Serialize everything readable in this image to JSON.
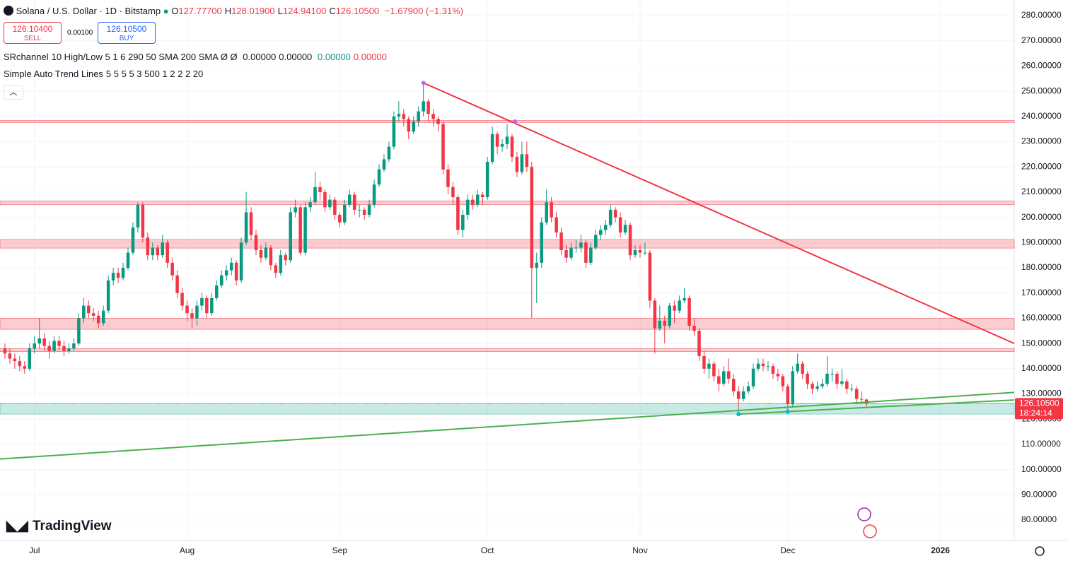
{
  "header": {
    "title": "Solana / U.S. Dollar · 1D · Bitstamp",
    "ohlc_legend": [
      {
        "key": "O",
        "value": "127.77700"
      },
      {
        "key": "H",
        "value": "128.01900"
      },
      {
        "key": "L",
        "value": "124.94100"
      },
      {
        "key": "C",
        "value": "126.10500"
      }
    ],
    "change": "−1.67900 (−1.31%)",
    "sell": {
      "price": "126.10400",
      "label": "SELL"
    },
    "spread": "0.00100",
    "buy": {
      "price": "126.10500",
      "label": "BUY"
    },
    "indicators": [
      {
        "name": "SRchannel",
        "params": "10 High/Low 5 1 6 290 50 SMA 200 SMA Ø Ø",
        "values": [
          "0.00000",
          "0.00000",
          "0.00000",
          "0.00000"
        ]
      },
      {
        "name": "Simple Auto Trend Lines",
        "params": "5 5 5 5 3 500 1 2 2 2 20",
        "values": []
      }
    ],
    "brand": "TradingView"
  },
  "chart_data": {
    "type": "candlestick",
    "up_color": "#089981",
    "down_color": "#f23645",
    "xlim": [
      -1,
      205
    ],
    "ylim": [
      71.88,
      286.16
    ],
    "grid": true,
    "xticks": [
      {
        "value": 6,
        "label": "Jul"
      },
      {
        "value": 37,
        "label": "Aug"
      },
      {
        "value": 68,
        "label": "Sep"
      },
      {
        "value": 98,
        "label": "Oct"
      },
      {
        "value": 129,
        "label": "Nov"
      },
      {
        "value": 159,
        "label": "Dec"
      },
      {
        "value": 190,
        "label": "2026"
      }
    ],
    "yticks": [
      {
        "value": 80,
        "label": "80.00000"
      },
      {
        "value": 90,
        "label": "90.00000"
      },
      {
        "value": 100,
        "label": "100.00000"
      },
      {
        "value": 110,
        "label": "110.00000"
      },
      {
        "value": 120,
        "label": "120.00000"
      },
      {
        "value": 130,
        "label": "130.00000"
      },
      {
        "value": 140,
        "label": "140.00000"
      },
      {
        "value": 150,
        "label": "150.00000"
      },
      {
        "value": 160,
        "label": "160.00000"
      },
      {
        "value": 170,
        "label": "170.00000"
      },
      {
        "value": 180,
        "label": "180.00000"
      },
      {
        "value": 190,
        "label": "190.00000"
      },
      {
        "value": 200,
        "label": "200.00000"
      },
      {
        "value": 210,
        "label": "210.00000"
      },
      {
        "value": 220,
        "label": "220.00000"
      },
      {
        "value": 230,
        "label": "230.00000"
      },
      {
        "value": 240,
        "label": "240.00000"
      },
      {
        "value": 250,
        "label": "250.00000"
      },
      {
        "value": 260,
        "label": "260.00000"
      },
      {
        "value": 270,
        "label": "270.00000"
      },
      {
        "value": 280,
        "label": "280.00000"
      }
    ],
    "ohlc": [
      [
        148,
        150,
        144,
        146
      ],
      [
        146,
        148,
        142,
        144
      ],
      [
        144,
        146,
        140,
        143
      ],
      [
        143,
        145,
        139,
        141
      ],
      [
        141,
        143,
        138,
        140
      ],
      [
        140,
        150,
        139,
        148
      ],
      [
        148,
        153,
        146,
        150
      ],
      [
        150,
        160,
        148,
        152
      ],
      [
        152,
        154,
        147,
        149
      ],
      [
        149,
        151,
        144,
        147
      ],
      [
        147,
        153,
        146,
        151
      ],
      [
        151,
        153,
        147,
        149
      ],
      [
        149,
        151,
        145,
        147
      ],
      [
        147,
        150,
        146,
        148
      ],
      [
        148,
        152,
        147,
        150
      ],
      [
        150,
        162,
        149,
        160
      ],
      [
        160,
        168,
        158,
        165
      ],
      [
        165,
        167,
        160,
        162
      ],
      [
        162,
        164,
        159,
        161
      ],
      [
        161,
        163,
        156,
        158
      ],
      [
        158,
        165,
        157,
        163
      ],
      [
        163,
        177,
        162,
        175
      ],
      [
        175,
        180,
        173,
        178
      ],
      [
        178,
        180,
        174,
        176
      ],
      [
        176,
        182,
        175,
        180
      ],
      [
        180,
        188,
        179,
        186
      ],
      [
        186,
        198,
        185,
        196
      ],
      [
        196,
        206,
        194,
        205
      ],
      [
        205,
        206,
        190,
        192
      ],
      [
        192,
        194,
        183,
        185
      ],
      [
        185,
        190,
        183,
        188
      ],
      [
        188,
        189,
        183,
        185
      ],
      [
        185,
        193,
        184,
        190
      ],
      [
        190,
        191,
        180,
        182
      ],
      [
        182,
        184,
        175,
        177
      ],
      [
        177,
        179,
        168,
        170
      ],
      [
        170,
        172,
        163,
        165
      ],
      [
        165,
        167,
        159,
        162
      ],
      [
        162,
        164,
        156,
        160
      ],
      [
        160,
        167,
        157,
        165
      ],
      [
        165,
        170,
        163,
        168
      ],
      [
        168,
        169,
        160,
        162
      ],
      [
        162,
        170,
        161,
        168
      ],
      [
        168,
        175,
        167,
        173
      ],
      [
        173,
        179,
        172,
        177
      ],
      [
        177,
        181,
        175,
        179
      ],
      [
        179,
        184,
        177,
        182
      ],
      [
        182,
        183,
        173,
        175
      ],
      [
        175,
        192,
        174,
        190
      ],
      [
        190,
        210,
        189,
        202
      ],
      [
        202,
        204,
        191,
        193
      ],
      [
        193,
        195,
        185,
        187
      ],
      [
        187,
        189,
        182,
        184
      ],
      [
        184,
        190,
        183,
        188
      ],
      [
        188,
        189,
        179,
        181
      ],
      [
        181,
        182,
        176,
        178
      ],
      [
        178,
        187,
        177,
        185
      ],
      [
        185,
        186,
        181,
        183
      ],
      [
        183,
        204,
        182,
        202
      ],
      [
        202,
        207,
        200,
        204
      ],
      [
        204,
        205,
        185,
        186
      ],
      [
        186,
        206,
        185,
        204
      ],
      [
        204,
        208,
        202,
        206
      ],
      [
        206,
        218,
        205,
        212
      ],
      [
        212,
        214,
        207,
        210
      ],
      [
        210,
        211,
        202,
        204
      ],
      [
        204,
        209,
        203,
        207
      ],
      [
        207,
        208,
        199,
        201
      ],
      [
        201,
        202,
        196,
        198
      ],
      [
        198,
        207,
        197,
        205
      ],
      [
        205,
        211,
        204,
        209
      ],
      [
        209,
        210,
        201,
        203
      ],
      [
        203,
        205,
        200,
        203
      ],
      [
        203,
        204,
        199,
        201
      ],
      [
        201,
        207,
        200,
        205
      ],
      [
        205,
        215,
        204,
        213
      ],
      [
        213,
        221,
        212,
        219
      ],
      [
        219,
        225,
        218,
        223
      ],
      [
        223,
        230,
        222,
        228
      ],
      [
        228,
        242,
        227,
        240
      ],
      [
        240,
        246,
        238,
        241
      ],
      [
        241,
        243,
        236,
        239
      ],
      [
        239,
        240,
        231,
        234
      ],
      [
        234,
        240,
        233,
        238
      ],
      [
        238,
        244,
        236,
        242
      ],
      [
        242,
        253,
        240,
        246
      ],
      [
        246,
        247,
        238,
        241
      ],
      [
        241,
        243,
        236,
        239
      ],
      [
        239,
        240,
        234,
        237
      ],
      [
        237,
        238,
        217,
        219
      ],
      [
        219,
        221,
        209,
        212
      ],
      [
        212,
        214,
        205,
        208
      ],
      [
        208,
        209,
        193,
        195
      ],
      [
        195,
        203,
        192,
        201
      ],
      [
        201,
        209,
        199,
        207
      ],
      [
        207,
        209,
        203,
        205
      ],
      [
        205,
        211,
        204,
        209
      ],
      [
        209,
        210,
        205,
        208
      ],
      [
        208,
        224,
        207,
        222
      ],
      [
        222,
        236,
        221,
        233
      ],
      [
        233,
        234,
        225,
        228
      ],
      [
        228,
        231,
        226,
        229
      ],
      [
        229,
        237,
        227,
        232
      ],
      [
        232,
        233,
        222,
        224
      ],
      [
        224,
        226,
        216,
        218
      ],
      [
        218,
        230,
        217,
        225
      ],
      [
        225,
        230,
        218,
        220
      ],
      [
        220,
        222,
        160,
        180
      ],
      [
        180,
        186,
        166,
        182
      ],
      [
        182,
        200,
        180,
        198
      ],
      [
        198,
        211,
        197,
        206
      ],
      [
        206,
        208,
        198,
        200
      ],
      [
        200,
        202,
        192,
        194
      ],
      [
        194,
        196,
        185,
        187
      ],
      [
        187,
        189,
        182,
        184
      ],
      [
        184,
        190,
        183,
        188
      ],
      [
        188,
        191,
        186,
        188
      ],
      [
        188,
        193,
        186,
        190
      ],
      [
        190,
        191,
        180,
        182
      ],
      [
        182,
        190,
        181,
        188
      ],
      [
        188,
        195,
        187,
        193
      ],
      [
        193,
        197,
        191,
        195
      ],
      [
        195,
        199,
        193,
        197
      ],
      [
        197,
        205,
        196,
        203
      ],
      [
        203,
        204,
        198,
        200
      ],
      [
        200,
        202,
        192,
        194
      ],
      [
        194,
        199,
        193,
        197
      ],
      [
        197,
        198,
        183,
        185
      ],
      [
        185,
        189,
        184,
        187
      ],
      [
        187,
        189,
        184,
        186
      ],
      [
        186,
        190,
        185,
        186
      ],
      [
        186,
        187,
        164,
        167
      ],
      [
        167,
        168,
        146,
        156
      ],
      [
        156,
        165,
        155,
        159
      ],
      [
        159,
        161,
        150,
        157
      ],
      [
        157,
        166,
        156,
        165
      ],
      [
        165,
        167,
        158,
        163
      ],
      [
        163,
        169,
        162,
        167
      ],
      [
        167,
        172,
        166,
        168
      ],
      [
        168,
        169,
        155,
        157
      ],
      [
        157,
        160,
        153,
        155
      ],
      [
        155,
        156,
        143,
        145
      ],
      [
        145,
        147,
        138,
        140
      ],
      [
        140,
        144,
        136,
        142
      ],
      [
        142,
        143,
        135,
        137
      ],
      [
        137,
        140,
        131,
        134
      ],
      [
        134,
        141,
        133,
        139
      ],
      [
        139,
        144,
        134,
        136
      ],
      [
        136,
        138,
        129,
        131
      ],
      [
        131,
        133,
        122,
        128
      ],
      [
        128,
        133,
        127,
        131
      ],
      [
        131,
        135,
        130,
        133
      ],
      [
        133,
        142,
        132,
        140
      ],
      [
        140,
        144,
        139,
        142
      ],
      [
        142,
        144,
        139,
        141
      ],
      [
        141,
        143,
        139,
        141
      ],
      [
        141,
        142,
        136,
        138
      ],
      [
        138,
        140,
        135,
        137
      ],
      [
        137,
        138,
        131,
        133
      ],
      [
        133,
        134,
        123,
        126
      ],
      [
        126,
        141,
        125,
        139
      ],
      [
        139,
        146,
        138,
        142
      ],
      [
        142,
        143,
        136,
        138
      ],
      [
        138,
        139,
        132,
        134
      ],
      [
        134,
        135,
        130,
        132
      ],
      [
        132,
        135,
        131,
        133
      ],
      [
        133,
        136,
        132,
        134
      ],
      [
        134,
        145,
        133,
        138
      ],
      [
        138,
        140,
        135,
        138
      ],
      [
        138,
        139,
        132,
        134
      ],
      [
        134,
        140,
        133,
        135
      ],
      [
        135,
        136,
        130,
        132
      ],
      [
        132,
        134,
        131,
        132
      ],
      [
        132,
        133,
        126,
        128
      ],
      [
        128,
        131,
        126,
        127.78
      ],
      [
        127.777,
        128.019,
        124.941,
        126.105
      ]
    ],
    "sr_zones": [
      {
        "range": [
          237.6,
          238.4
        ],
        "color": "#f23645"
      },
      {
        "range": [
          205,
          206.5
        ],
        "color": "#f23645"
      },
      {
        "range": [
          187.8,
          191.2
        ],
        "color": "#f23645"
      },
      {
        "range": [
          155.6,
          160
        ],
        "color": "#f23645"
      },
      {
        "range": [
          146.8,
          148
        ],
        "color": "#f23645"
      },
      {
        "range": [
          122,
          126.2
        ],
        "color": "#22ab94"
      }
    ],
    "trend_lines": [
      {
        "color": "#f23645",
        "points": [
          [
            85,
            253.3
          ],
          [
            205,
            150
          ]
        ]
      },
      {
        "color": "#4caf50",
        "points": [
          [
            -1,
            104.2
          ],
          [
            205,
            130.6
          ]
        ]
      },
      {
        "color": "#4caf50",
        "points": [
          [
            149,
            122
          ],
          [
            205,
            127.6
          ]
        ]
      }
    ],
    "pivots": [
      {
        "color": "#b36bf0",
        "points": [
          [
            85,
            253.3
          ],
          [
            103.6,
            238
          ]
        ]
      },
      {
        "color": "#00bcd4",
        "points": [
          [
            149,
            122
          ],
          [
            159,
            123
          ]
        ]
      }
    ],
    "price_label": "126.10500",
    "countdown": "18:24:14"
  }
}
